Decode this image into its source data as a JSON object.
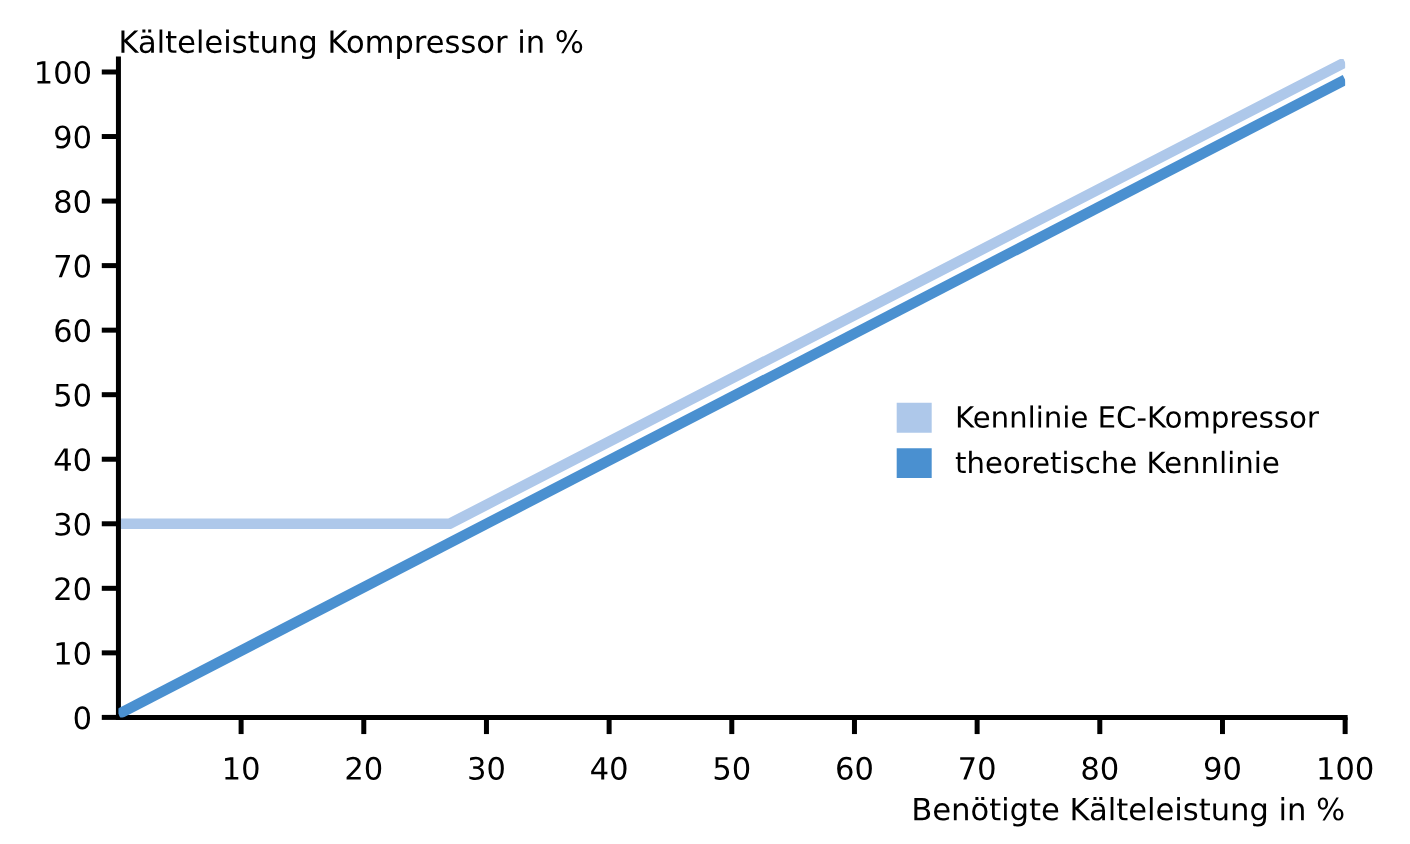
{
  "chart_data": {
    "type": "line",
    "xlabel": "Benötigte Kälteleistung in %",
    "ylabel": "Kälteleistung Kompressor in %",
    "xlim": [
      0,
      100
    ],
    "ylim": [
      0,
      102
    ],
    "xticks": [
      10,
      20,
      30,
      40,
      50,
      60,
      70,
      80,
      90,
      100
    ],
    "yticks": [
      0,
      10,
      20,
      30,
      40,
      50,
      60,
      70,
      80,
      90,
      100
    ],
    "grid": false,
    "legend": "right",
    "marker": "none",
    "line_style": "solid",
    "series": [
      {
        "name": "Kennlinie EC-Kompressor",
        "color": "#aec8ea",
        "x": [
          0,
          27,
          100
        ],
        "values": [
          30,
          30,
          101.5
        ]
      },
      {
        "name": "theoretische Kennlinie",
        "color": "#4a90d0",
        "x": [
          0,
          100
        ],
        "values": [
          0.5,
          98.8
        ]
      }
    ]
  }
}
